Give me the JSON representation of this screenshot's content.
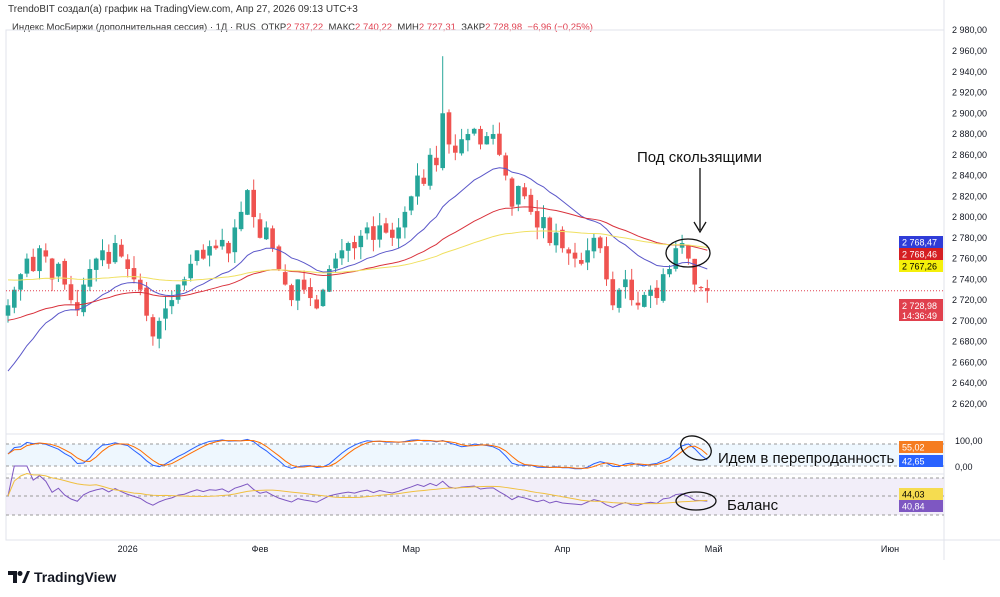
{
  "header": {
    "credit": "TrendoBIT создал(а) график на TradingView.com, Апр 27, 2026 09:13 UTC+3",
    "symbol": "Индекс МосБиржи (дополнительная сессия) · 1Д · RUS",
    "open_label": "ОТКР",
    "open": "2 737,22",
    "high_label": "МАКС",
    "high": "2 740,22",
    "low_label": "МИН",
    "low": "2 727,31",
    "close_label": "ЗАКР",
    "close": "2 728,98",
    "change": "−6,96 (−0,25%)"
  },
  "annotations": {
    "ma": "Под скользящими",
    "stoch": "Идем в перепроданность",
    "rsi": "Баланс"
  },
  "logo": "TradingView",
  "colors": {
    "up": "#26a69a",
    "down": "#ef5350",
    "ma_fast": "#5b57c9",
    "ma_mid": "#d9323c",
    "ma_slow": "#f0e060",
    "price": "#e04050"
  },
  "chart_data": {
    "type": "candlestick",
    "ylim": [
      2600,
      2980
    ],
    "yticks": [
      2620,
      2640,
      2660,
      2680,
      2700,
      2720,
      2740,
      2760,
      2780,
      2800,
      2820,
      2840,
      2860,
      2880,
      2900,
      2920,
      2940,
      2960,
      2980
    ],
    "ytick_labels": [
      "2 620,00",
      "2 640,00",
      "2 660,00",
      "2 680,00",
      "2 700,00",
      "2 720,00",
      "2 740,00",
      "2 760,00",
      "2 780,00",
      "2 800,00",
      "2 820,00",
      "2 840,00",
      "2 860,00",
      "2 880,00",
      "2 900,00",
      "2 920,00",
      "2 940,00",
      "2 960,00",
      "2 980,00"
    ],
    "xticks": [
      {
        "label": "2026",
        "index": 19
      },
      {
        "label": "Фев",
        "index": 40
      },
      {
        "label": "Мар",
        "index": 64
      },
      {
        "label": "Апр",
        "index": 88
      },
      {
        "label": "Май",
        "index": 112
      },
      {
        "label": "Июн",
        "index": 140
      }
    ],
    "closes": [
      2715,
      2730,
      2745,
      2760,
      2748,
      2770,
      2762,
      2740,
      2755,
      2735,
      2720,
      2710,
      2735,
      2750,
      2760,
      2768,
      2755,
      2775,
      2762,
      2750,
      2740,
      2730,
      2705,
      2685,
      2700,
      2712,
      2720,
      2735,
      2740,
      2755,
      2768,
      2760,
      2772,
      2770,
      2778,
      2765,
      2790,
      2805,
      2826,
      2800,
      2780,
      2790,
      2770,
      2750,
      2735,
      2720,
      2740,
      2730,
      2722,
      2712,
      2730,
      2750,
      2760,
      2768,
      2775,
      2770,
      2782,
      2790,
      2778,
      2792,
      2785,
      2780,
      2790,
      2805,
      2820,
      2840,
      2832,
      2860,
      2850,
      2900,
      2870,
      2862,
      2875,
      2880,
      2885,
      2870,
      2878,
      2880,
      2860,
      2840,
      2810,
      2830,
      2820,
      2805,
      2790,
      2800,
      2775,
      2785,
      2770,
      2765,
      2760,
      2755,
      2768,
      2780,
      2770,
      2740,
      2715,
      2730,
      2740,
      2720,
      2715,
      2725,
      2730,
      2722,
      2745,
      2750,
      2770,
      2775,
      2760,
      2735,
      2732,
      2729
    ],
    "peak_high": 2955,
    "ma_start": {
      "fast": 2645,
      "mid": 2700,
      "slow": 2740
    },
    "ma_labels": {
      "fast": "2 768,47",
      "mid": "2 768,46",
      "slow": "2 767,26"
    },
    "last_price": {
      "value": 2728.98,
      "label": "2 728,98",
      "timer": "14:36:49"
    },
    "stoch": {
      "labels": {
        "top": "100,00",
        "bottom": "0,00",
        "k": "55,02",
        "d": "42,65"
      }
    },
    "rsi": {
      "labels": {
        "main": "44,03",
        "ma": "40,84"
      }
    }
  }
}
